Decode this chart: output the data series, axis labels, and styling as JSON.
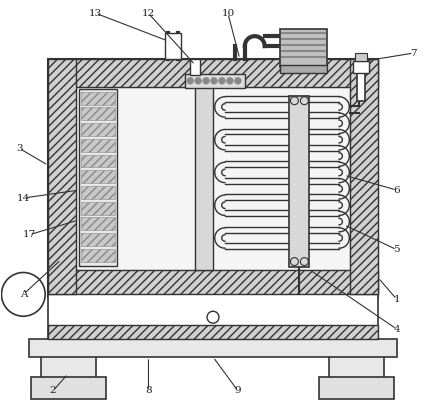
{
  "bg_color": "white",
  "line_color": "#333333",
  "label_color": "#222222",
  "figsize": [
    4.3,
    4.05
  ],
  "dpi": 100
}
